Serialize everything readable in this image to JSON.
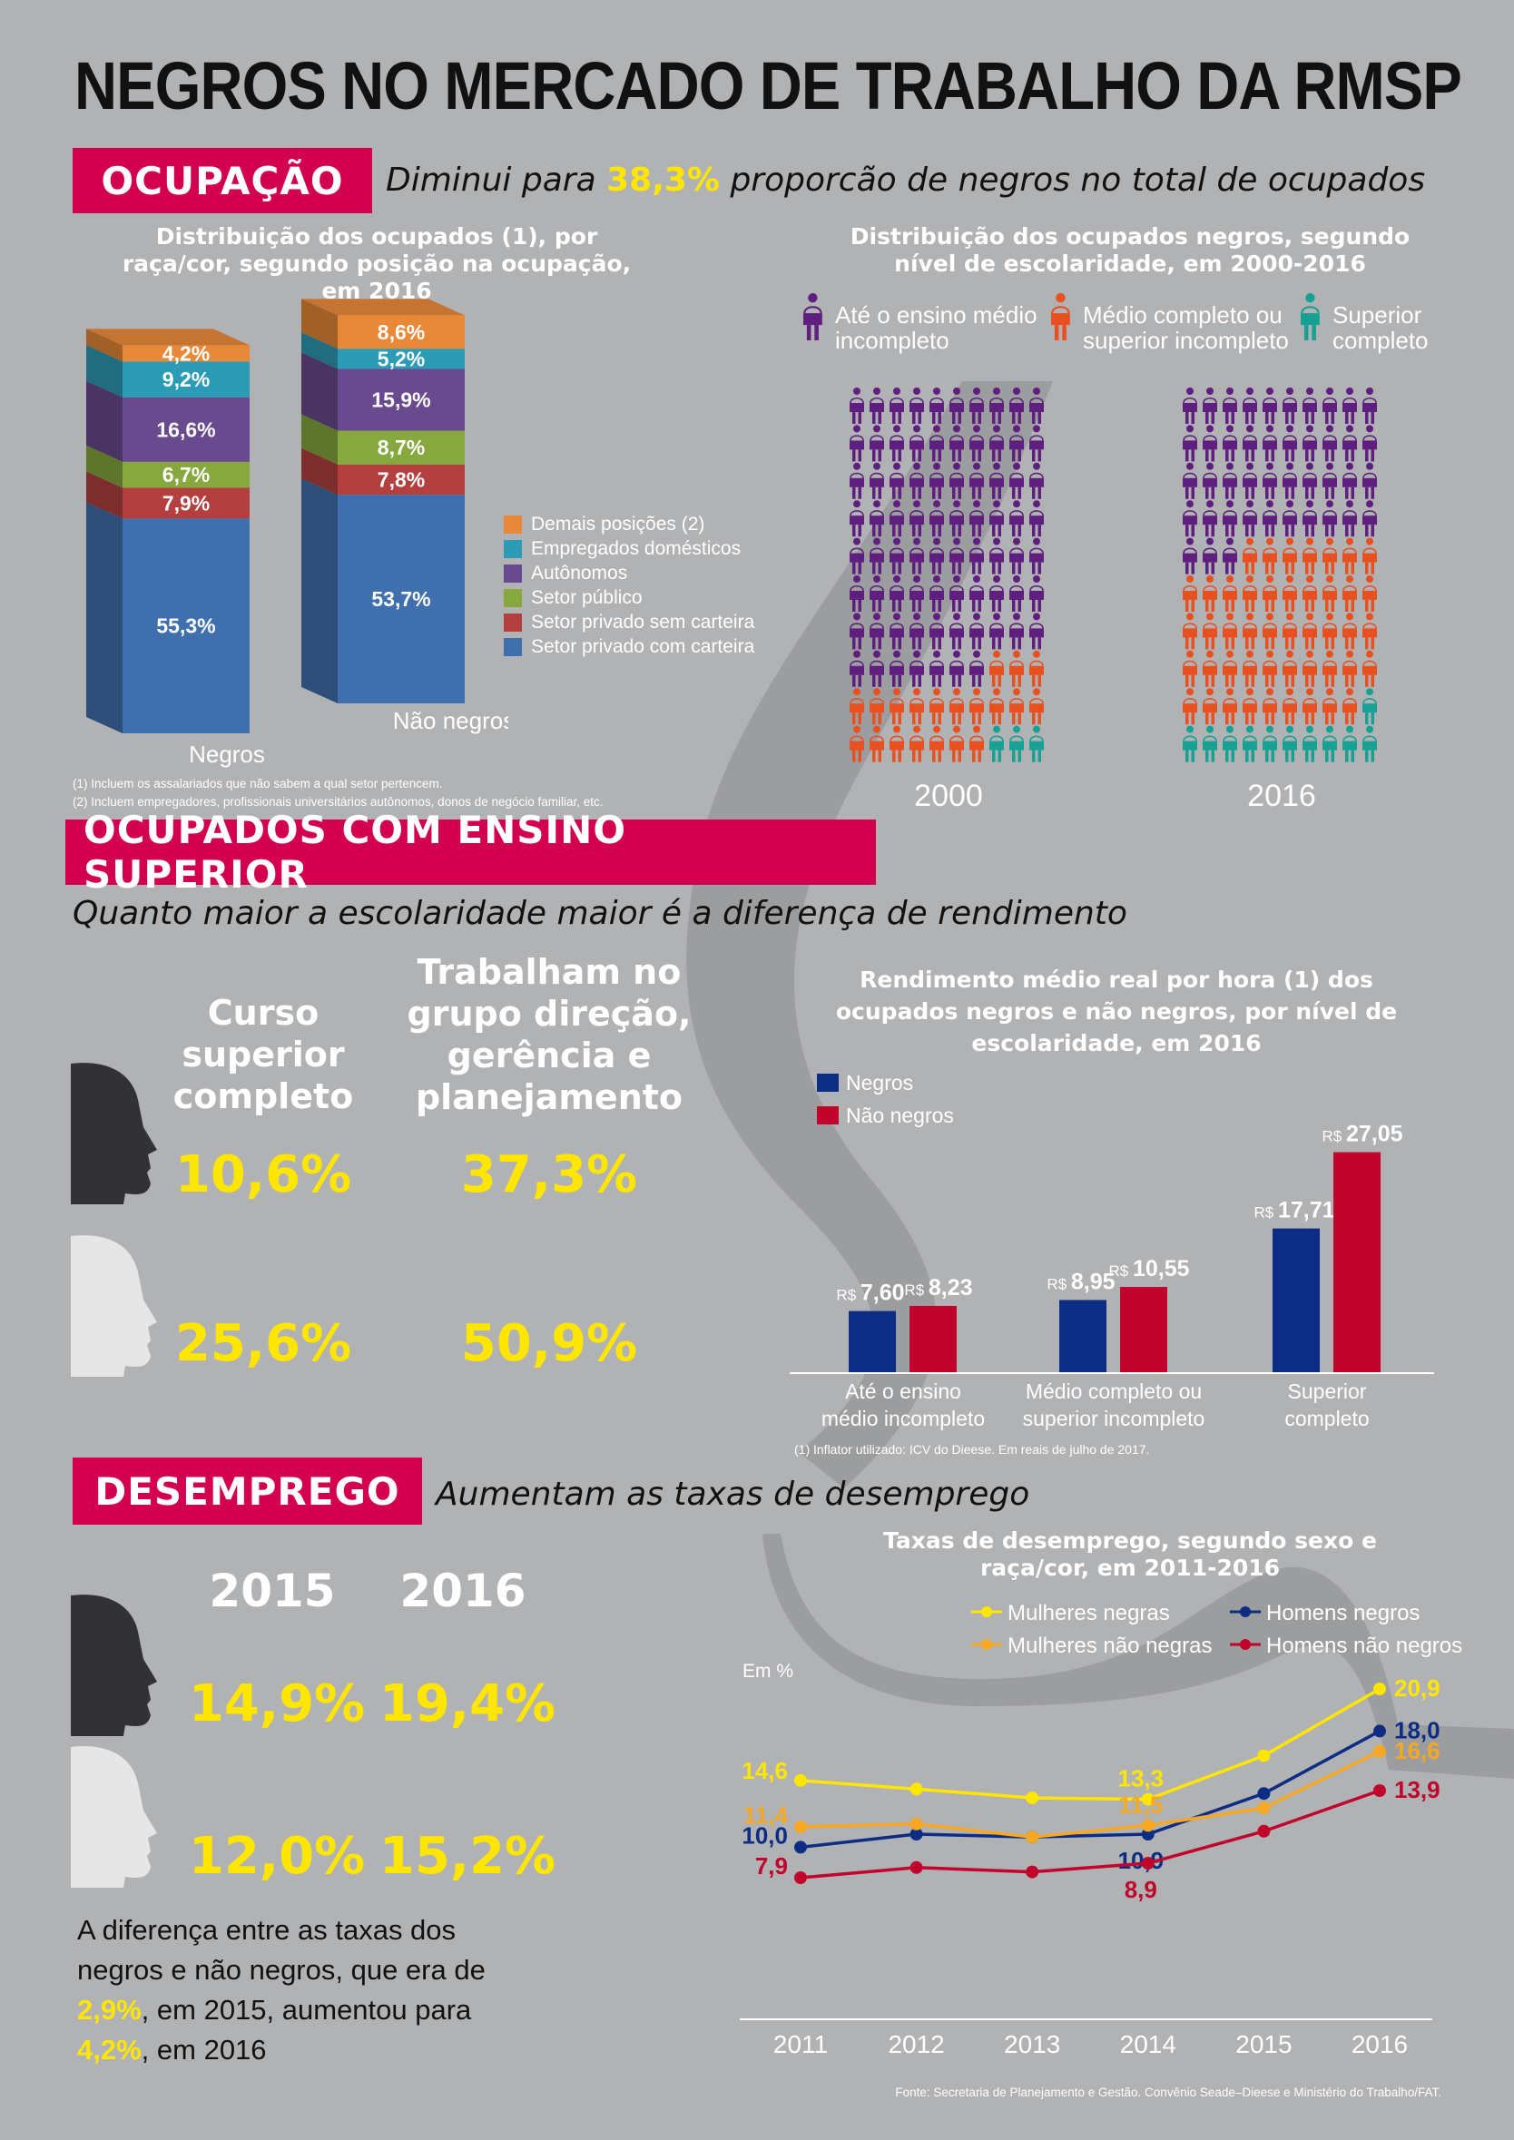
{
  "title": "NEGROS NO MERCADO DE TRABALHO DA RMSP",
  "ocupacao": {
    "label": "OCUPAÇÃO",
    "subtitle_pre": "Diminui para ",
    "subtitle_value": "38,3%",
    "subtitle_post": " proporcão de negros no total de ocupados",
    "stack_chart": {
      "title": "Distribuição dos ocupados (1), por raça/cor, segundo posição na ocupação, em 2016",
      "legend": [
        "Demais posições (2)",
        "Empregados domésticos",
        "Autônomos",
        "Setor público",
        "Setor privado sem carteira",
        "Setor privado com carteira"
      ],
      "colors": [
        "#e8893a",
        "#2c9bb5",
        "#6a4a8e",
        "#86a83e",
        "#b3403f",
        "#3f70ad"
      ],
      "groups": [
        {
          "name": "Negros",
          "values": [
            4.2,
            9.2,
            16.6,
            6.7,
            7.9,
            55.3
          ],
          "labels": [
            "4,2%",
            "9,2%",
            "16,6%",
            "6,7%",
            "7,9%",
            "55,3%"
          ]
        },
        {
          "name": "Não negros",
          "values": [
            8.6,
            5.2,
            15.9,
            8.7,
            7.8,
            53.7
          ],
          "labels": [
            "8,6%",
            "5,2%",
            "15,9%",
            "8,7%",
            "7,8%",
            "53,7%"
          ]
        }
      ],
      "notes": [
        "(1) Incluem os assalariados que não sabem a qual setor pertencem.",
        "(2) Incluem empregadores, profissionais universitários autônomos, donos de negócio familiar, etc."
      ]
    },
    "picto_chart": {
      "title": "Distribuição dos ocupados negros, segundo nível de escolaridade, em 2000-2016",
      "legend": [
        "Até o ensino médio incompleto",
        "Médio completo ou superior incompleto",
        "Superior completo"
      ],
      "colors": [
        "#5f1f7e",
        "#e8501f",
        "#17a094"
      ],
      "years": [
        {
          "year": "2000",
          "counts": [
            77,
            20,
            3
          ]
        },
        {
          "year": "2016",
          "counts": [
            43,
            46,
            11
          ]
        }
      ]
    }
  },
  "superior": {
    "label": "OCUPADOS COM ENSINO SUPERIOR",
    "subtitle": "Quanto maior a escolaridade maior é a diferença de rendimento",
    "col1": "Curso superior completo",
    "col2": "Trabalham no grupo direção, gerência e planejamento",
    "negros": [
      "10,6%",
      "37,3%"
    ],
    "nao_negros": [
      "25,6%",
      "50,9%"
    ],
    "bar_chart": {
      "title": "Rendimento médio real por hora (1) dos ocupados negros e não negros, por nível de escolaridade, em 2016",
      "series": [
        {
          "name": "Negros",
          "color": "#0c2d83",
          "values": [
            7.6,
            8.95,
            17.71
          ],
          "labels": [
            "7,60",
            "8,95",
            "17,71"
          ]
        },
        {
          "name": "Não negros",
          "color": "#c0042b",
          "values": [
            8.23,
            10.55,
            27.05
          ],
          "labels": [
            "8,23",
            "10,55",
            "27,05"
          ]
        }
      ],
      "currency": "R$",
      "categories": [
        "Até o ensino médio incompleto",
        "Médio completo ou superior incompleto",
        "Superior completo"
      ],
      "note": "(1) Inflator utilizado: ICV do Dieese. Em reais de julho de 2017."
    }
  },
  "desemprego": {
    "label": "DESEMPREGO",
    "subtitle": "Aumentam as taxas de desemprego",
    "years": [
      "2015",
      "2016"
    ],
    "negros": [
      "14,9%",
      "19,4%"
    ],
    "nao_negros": [
      "12,0%",
      "15,2%"
    ],
    "text": [
      "A diferença entre as taxas dos negros e não negros, que era de ",
      "2,9%",
      ", em 2015, aumentou para ",
      "4,2%",
      ", em 2016"
    ]
  },
  "chart_data": {
    "type": "line",
    "title": "Taxas de desemprego, segundo sexo e raça/cor, em 2011-2016",
    "ylabel": "Em %",
    "x": [
      "2011",
      "2012",
      "2013",
      "2014",
      "2015",
      "2016"
    ],
    "series": [
      {
        "name": "Mulheres negras",
        "color": "#ffe600",
        "values": [
          14.6,
          14.0,
          13.4,
          13.3,
          16.3,
          20.9
        ],
        "labels": {
          "0": "14,6",
          "3": "13,3",
          "5": "20,9"
        }
      },
      {
        "name": "Homens negros",
        "color": "#0c2d83",
        "values": [
          10.0,
          10.9,
          10.7,
          10.9,
          13.7,
          18.0
        ],
        "labels": {
          "0": "10,0",
          "3": "10,9",
          "5": "18,0"
        }
      },
      {
        "name": "Mulheres não negras",
        "color": "#f7a823",
        "values": [
          11.4,
          11.6,
          10.7,
          11.5,
          12.7,
          16.6
        ],
        "labels": {
          "0": "11,4",
          "3": "11,5",
          "5": "16,6"
        }
      },
      {
        "name": "Homens não negros",
        "color": "#c0042b",
        "values": [
          7.9,
          8.6,
          8.3,
          8.9,
          11.1,
          13.9
        ],
        "labels": {
          "0": "7,9",
          "3": "8,9",
          "5": "13,9"
        }
      }
    ],
    "source": "Fonte: Secretaria de Planejamento e Gestão. Convênio Seade–Dieese e Ministério do Trabalho/FAT."
  }
}
